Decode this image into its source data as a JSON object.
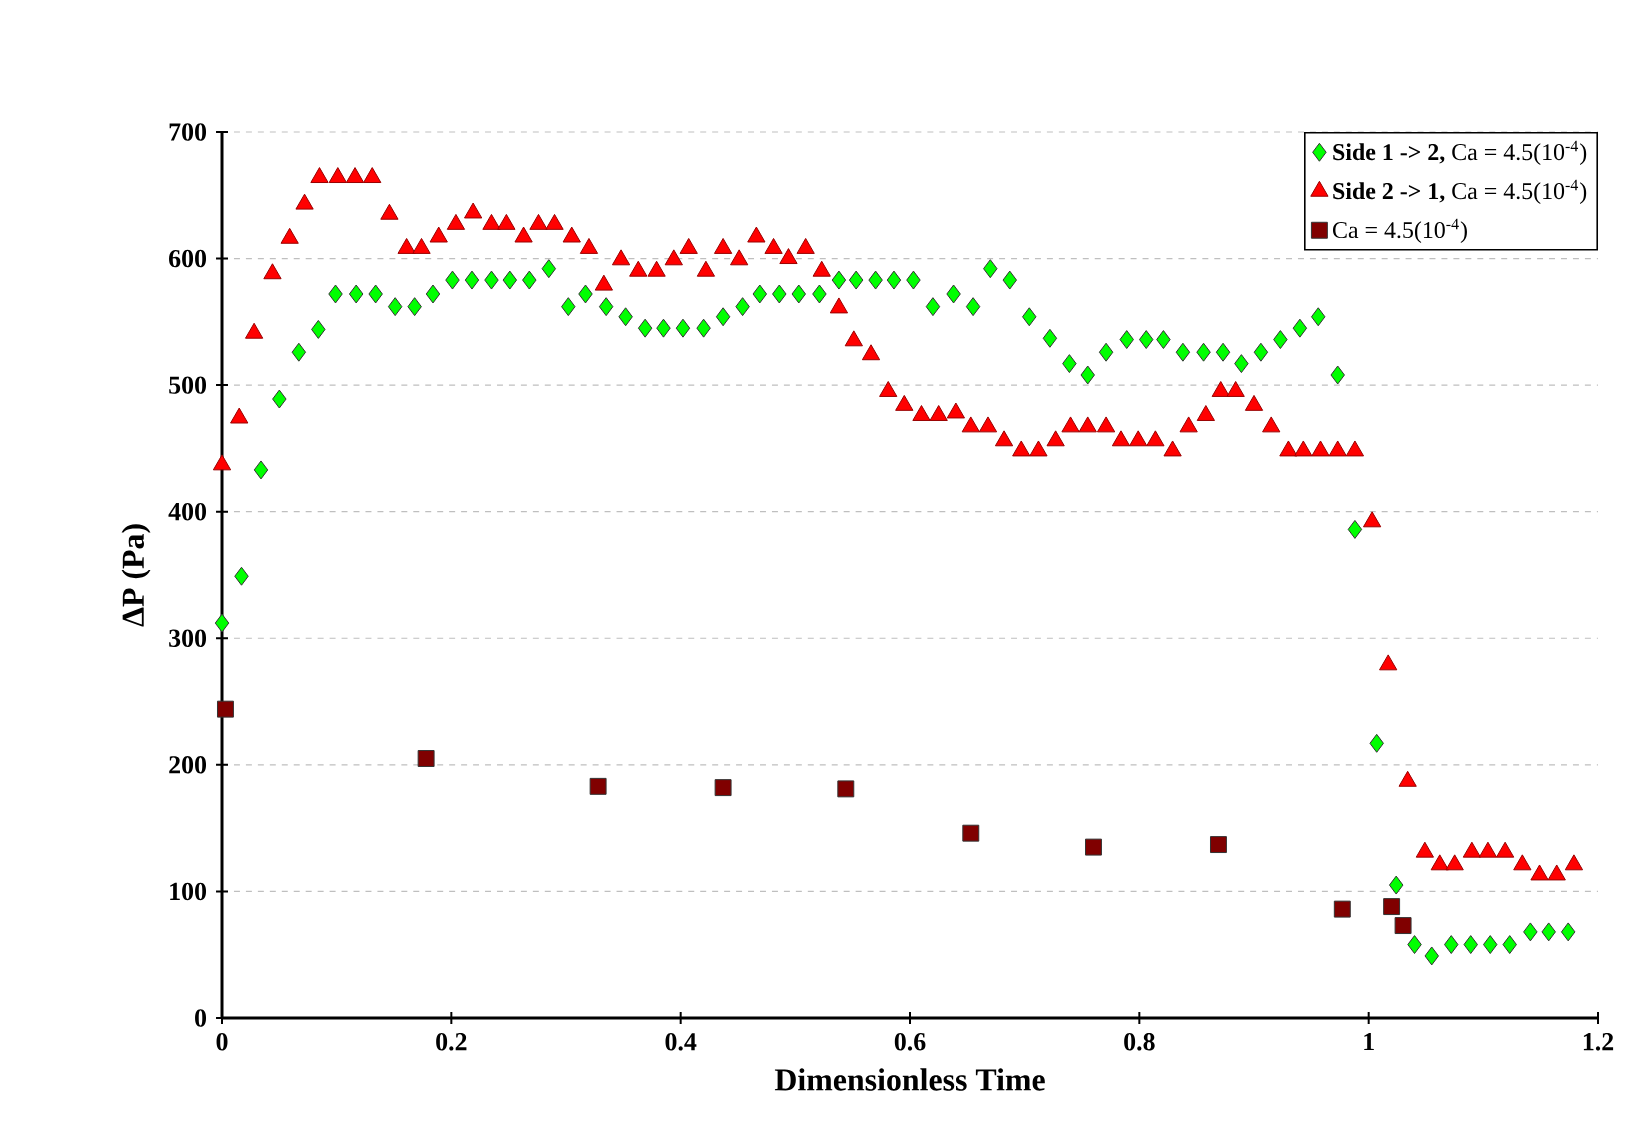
{
  "chart_data": {
    "type": "scatter",
    "xlabel": "Dimensionless Time",
    "ylabel": "ΔP (Pa)",
    "xlim": [
      0,
      1.2
    ],
    "ylim": [
      0,
      700
    ],
    "xticks": [
      0,
      0.2,
      0.4,
      0.6,
      0.8,
      1,
      1.2
    ],
    "yticks": [
      0,
      100,
      200,
      300,
      400,
      500,
      600,
      700
    ],
    "grid": "y",
    "legend": "top right",
    "series": [
      {
        "name": "**Side 1 -> 2,** Ca = 4.5(10$^{-4}$)",
        "color": "#00ff00",
        "marker": "diamond",
        "x": [
          0,
          0.017,
          0.034,
          0.05,
          0.067,
          0.084,
          0.099,
          0.117,
          0.134,
          0.151,
          0.168,
          0.184,
          0.201,
          0.218,
          0.235,
          0.251,
          0.268,
          0.285,
          0.302,
          0.317,
          0.335,
          0.352,
          0.369,
          0.385,
          0.402,
          0.42,
          0.437,
          0.454,
          0.469,
          0.486,
          0.503,
          0.521,
          0.538,
          0.553,
          0.57,
          0.586,
          0.603,
          0.62,
          0.638,
          0.655,
          0.67,
          0.687,
          0.704,
          0.722,
          0.739,
          0.755,
          0.771,
          0.789,
          0.806,
          0.821,
          0.838,
          0.856,
          0.873,
          0.889,
          0.906,
          0.923,
          0.94,
          0.956,
          0.973,
          0.988,
          1.007,
          1.024,
          1.04,
          1.055,
          1.072,
          1.089,
          1.106,
          1.123,
          1.141,
          1.157,
          1.174
        ],
        "values": [
          312,
          349,
          433,
          489,
          526,
          544,
          572,
          572,
          572,
          562,
          562,
          572,
          583,
          583,
          583,
          583,
          583,
          592,
          562,
          572,
          562,
          554,
          545,
          545,
          545,
          545,
          554,
          562,
          572,
          572,
          572,
          572,
          583,
          583,
          583,
          583,
          583,
          562,
          572,
          562,
          592,
          583,
          554,
          537,
          517,
          508,
          526,
          536,
          536,
          536,
          526,
          526,
          526,
          517,
          526,
          536,
          545,
          554,
          508,
          386,
          217,
          105,
          58,
          49,
          58,
          58,
          58,
          58,
          68,
          68,
          68
        ]
      },
      {
        "name": "**Side 2 -> 1,** Ca = 4.5(10$^{-4}$)",
        "color": "#ff0000",
        "marker": "triangle",
        "x": [
          0,
          0.015,
          0.028,
          0.044,
          0.059,
          0.072,
          0.085,
          0.101,
          0.116,
          0.131,
          0.146,
          0.161,
          0.174,
          0.189,
          0.204,
          0.219,
          0.235,
          0.248,
          0.263,
          0.276,
          0.29,
          0.305,
          0.32,
          0.333,
          0.348,
          0.363,
          0.379,
          0.394,
          0.407,
          0.422,
          0.437,
          0.451,
          0.466,
          0.481,
          0.494,
          0.509,
          0.523,
          0.538,
          0.551,
          0.566,
          0.581,
          0.595,
          0.61,
          0.625,
          0.64,
          0.653,
          0.668,
          0.682,
          0.697,
          0.712,
          0.727,
          0.74,
          0.755,
          0.771,
          0.784,
          0.799,
          0.814,
          0.829,
          0.843,
          0.858,
          0.871,
          0.884,
          0.9,
          0.915,
          0.93,
          0.943,
          0.958,
          0.973,
          0.988,
          1.003,
          1.017,
          1.034,
          1.049,
          1.062,
          1.075,
          1.09,
          1.104,
          1.119,
          1.134,
          1.149,
          1.164,
          1.179
        ],
        "values": [
          437,
          474,
          541,
          588,
          616,
          643,
          664,
          664,
          664,
          664,
          635,
          608,
          608,
          617,
          627,
          636,
          627,
          627,
          617,
          627,
          627,
          617,
          608,
          579,
          599,
          590,
          590,
          599,
          608,
          590,
          608,
          599,
          617,
          608,
          600,
          608,
          590,
          561,
          535,
          524,
          495,
          484,
          476,
          476,
          478,
          467,
          467,
          456,
          448,
          448,
          456,
          467,
          467,
          467,
          456,
          456,
          456,
          448,
          467,
          476,
          495,
          495,
          484,
          467,
          448,
          448,
          448,
          448,
          448,
          392,
          279,
          187,
          131,
          121,
          121,
          131,
          131,
          131,
          121,
          113,
          113,
          121
        ]
      },
      {
        "name": "Ca = 4.5(10$^{-4}$)",
        "color": "#800000",
        "marker": "square",
        "x": [
          0.003,
          0.178,
          0.328,
          0.437,
          0.544,
          0.653,
          0.76,
          0.869,
          0.977,
          1.02,
          1.03
        ],
        "values": [
          244,
          205,
          183,
          182,
          181,
          146,
          135,
          137,
          86,
          88,
          73
        ]
      }
    ]
  }
}
